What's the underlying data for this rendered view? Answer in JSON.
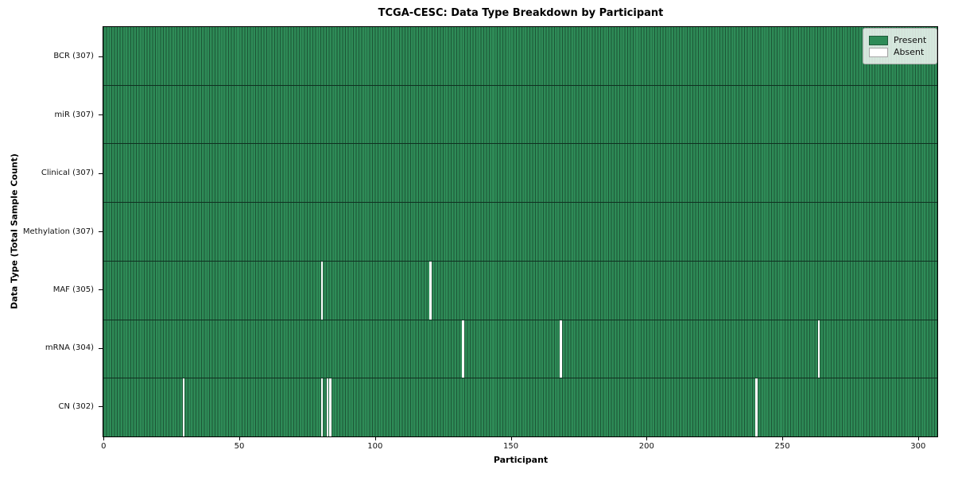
{
  "chart_data": {
    "type": "heatmap",
    "title": "TCGA-CESC: Data Type Breakdown by Participant",
    "xlabel": "Participant",
    "ylabel": "Data Type (Total Sample Count)",
    "x_range": [
      0,
      307
    ],
    "x_ticks": [
      0,
      50,
      100,
      150,
      200,
      250,
      300
    ],
    "n_participants": 307,
    "grid": false,
    "legend": {
      "position": "upper right",
      "entries": [
        {
          "label": "Present",
          "color": "#2e8b57"
        },
        {
          "label": "Absent",
          "color": "#ffffff"
        }
      ]
    },
    "rows": [
      {
        "label": "BCR (307)",
        "data_type": "BCR",
        "total_samples": 307,
        "absent_participants": []
      },
      {
        "label": "miR (307)",
        "data_type": "miR",
        "total_samples": 307,
        "absent_participants": []
      },
      {
        "label": "Clinical (307)",
        "data_type": "Clinical",
        "total_samples": 307,
        "absent_participants": []
      },
      {
        "label": "Methylation (307)",
        "data_type": "Methylation",
        "total_samples": 307,
        "absent_participants": []
      },
      {
        "label": "MAF (305)",
        "data_type": "MAF",
        "total_samples": 305,
        "absent_participants": [
          80,
          120
        ]
      },
      {
        "label": "mRNA (304)",
        "data_type": "mRNA",
        "total_samples": 304,
        "absent_participants": [
          132,
          168,
          263
        ]
      },
      {
        "label": "CN (302)",
        "data_type": "CN",
        "total_samples": 302,
        "absent_participants": [
          29,
          80,
          82,
          83,
          240
        ]
      }
    ],
    "colors": {
      "present": "#2e8b57",
      "absent": "#ffffff",
      "cell_edge": "#1c5636",
      "row_divider": "#0f3020",
      "axis": "#000000"
    }
  }
}
